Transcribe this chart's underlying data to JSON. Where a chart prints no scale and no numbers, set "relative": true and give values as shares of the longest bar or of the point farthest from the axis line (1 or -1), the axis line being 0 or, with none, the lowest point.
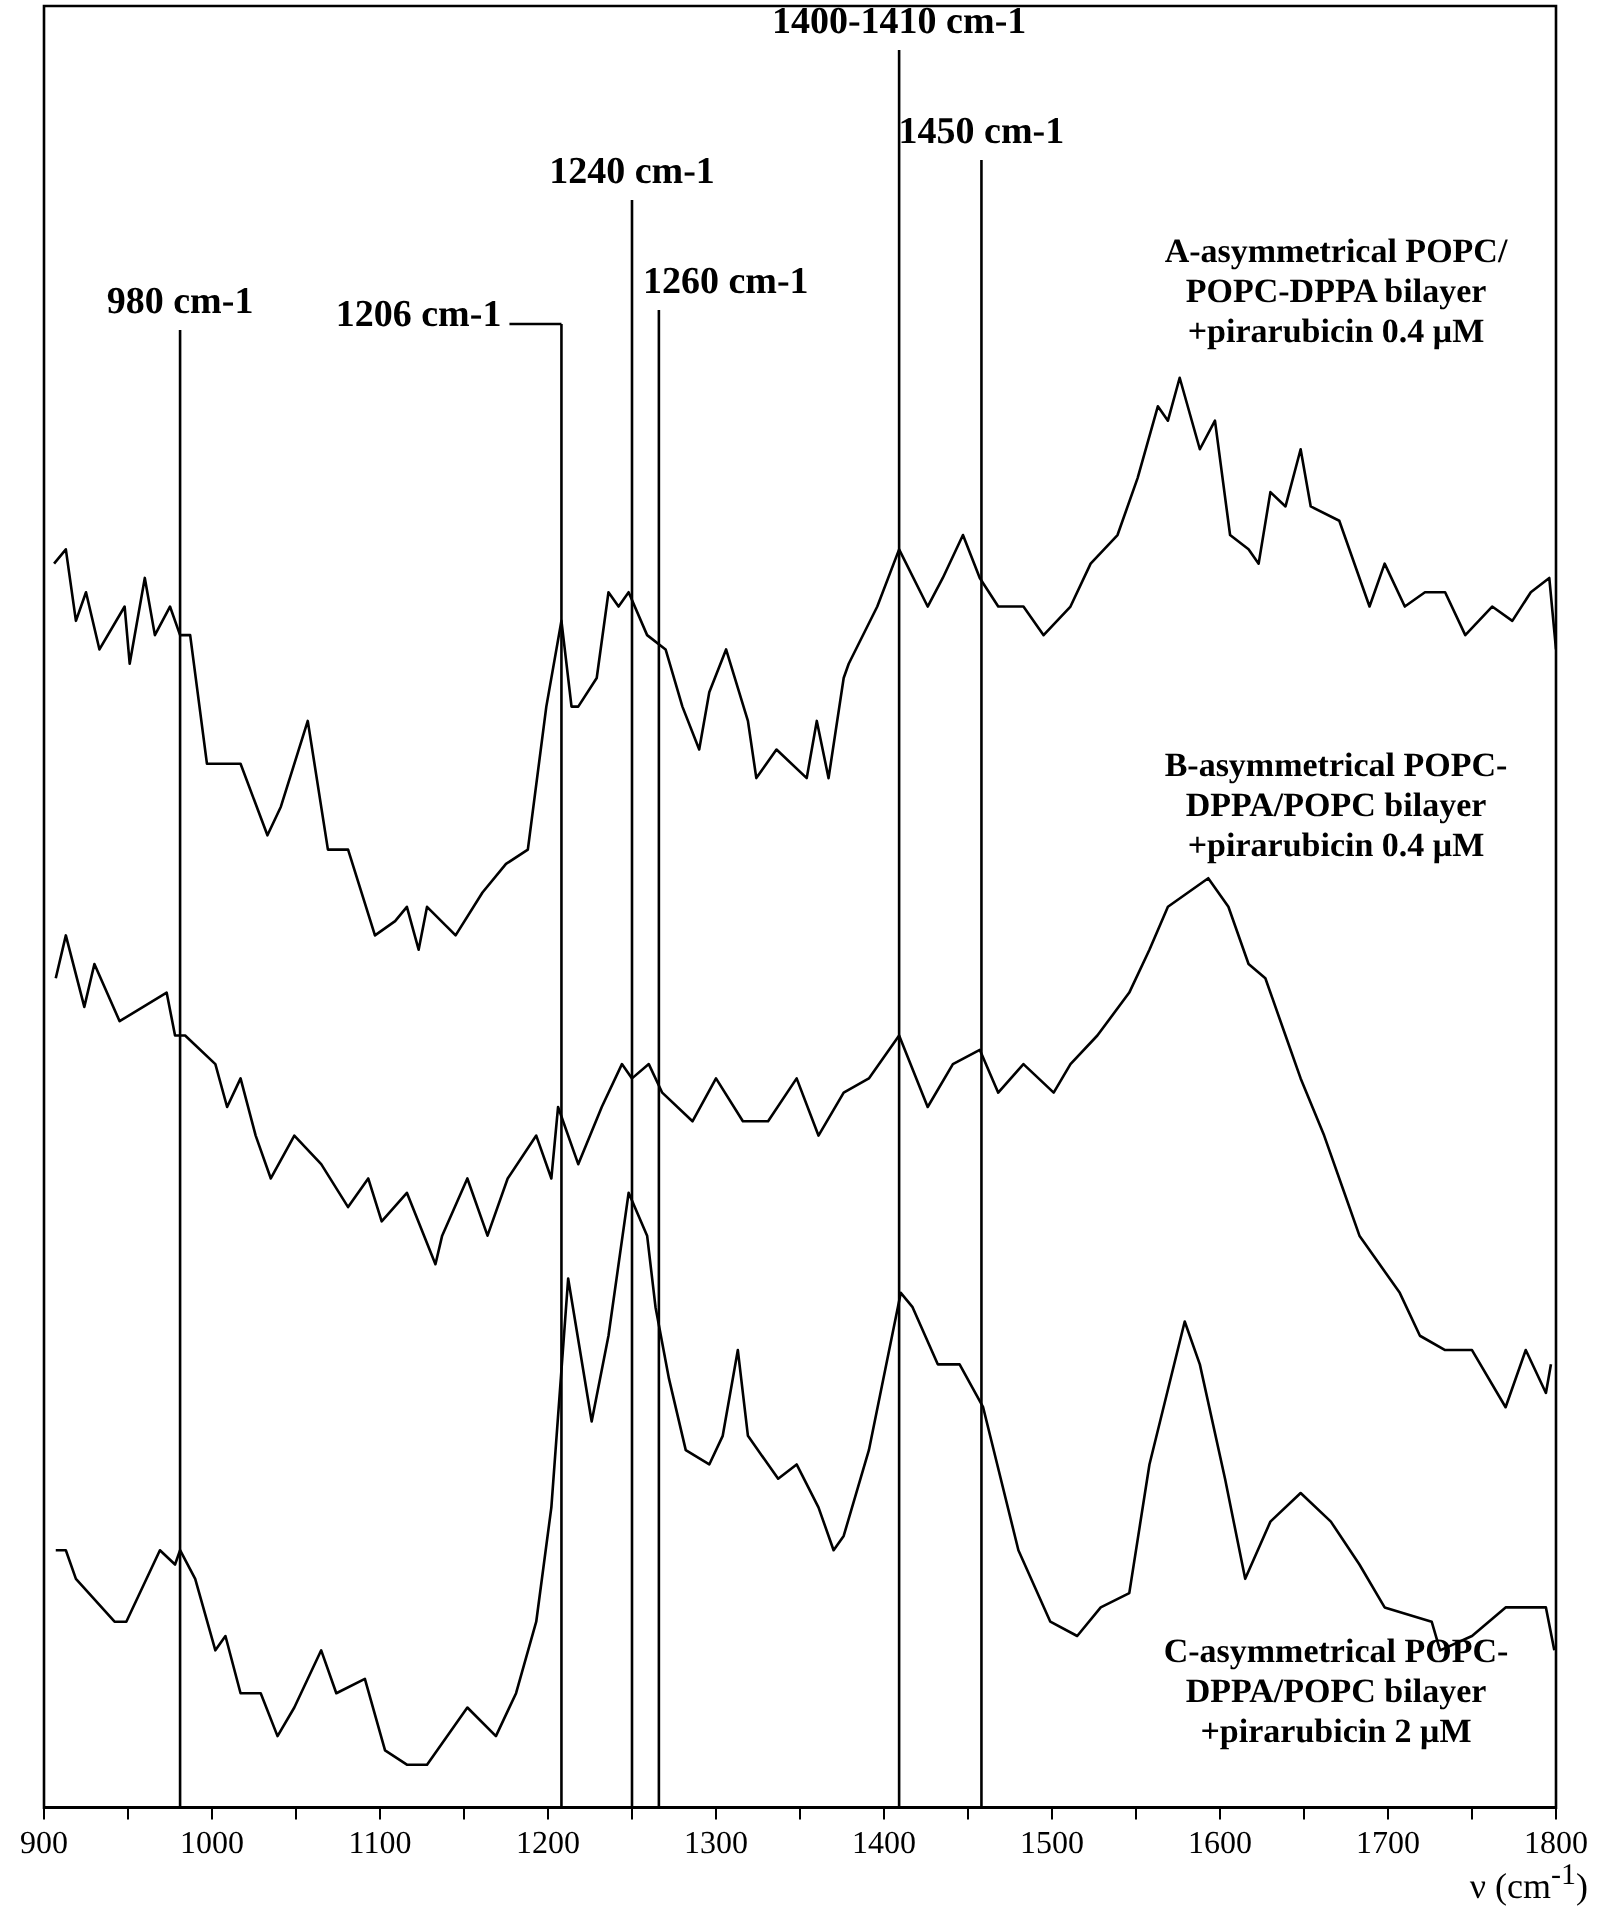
{
  "chart_data": {
    "type": "line",
    "relative": true,
    "xlabel": "ν (cm$^{-1}$)",
    "tick_labels": "x",
    "marker": "none",
    "line_style": "solid",
    "xlim": [
      900,
      1800
    ],
    "xticks": [
      900,
      {
        "value": 950,
        "label": null
      },
      1000,
      {
        "value": 1050,
        "label": null
      },
      1100,
      {
        "value": 1150,
        "label": null
      },
      1200,
      {
        "value": 1250,
        "label": null
      },
      1300,
      {
        "value": 1350,
        "label": null
      },
      1400,
      {
        "value": 1450,
        "label": null
      },
      1500,
      {
        "value": 1550,
        "label": null
      },
      1600,
      {
        "value": 1650,
        "label": null
      },
      1700,
      {
        "value": 1750,
        "label": null
      },
      1800
    ],
    "ref_lines": [
      {
        "axis": "x",
        "value": 981,
        "label": "980 cm-1",
        "color": "#000000"
      },
      {
        "axis": "x",
        "value": 1208,
        "label": "1206 cm-1",
        "color": "#000000"
      },
      {
        "axis": "x",
        "value": 1250,
        "label": "1240 cm-1",
        "color": "#000000"
      },
      {
        "axis": "x",
        "value": 1266,
        "label": "1260 cm-1",
        "color": "#000000"
      },
      {
        "axis": "x",
        "value": 1409,
        "label": "1400-1410 cm-1",
        "color": "#000000"
      },
      {
        "axis": "x",
        "value": 1458,
        "label": "1450 cm-1",
        "color": "#000000"
      }
    ],
    "series": [
      {
        "name": "A-asymmetrical POPC/ POPC-DPPA bilayer +pirarubicin 0.4 μM",
        "color": "#000000",
        "x": [
          906,
          913,
          919,
          925,
          933,
          948,
          951,
          960,
          966,
          975,
          981,
          987,
          997,
          1017,
          1033,
          1041,
          1057,
          1069,
          1081,
          1097,
          1109,
          1116,
          1123,
          1128,
          1145,
          1161,
          1175,
          1188,
          1199,
          1208,
          1214,
          1218,
          1229,
          1236,
          1242,
          1248,
          1259,
          1270,
          1280,
          1290,
          1296,
          1306,
          1319,
          1324,
          1336,
          1354,
          1360,
          1367,
          1376,
          1379,
          1396,
          1409,
          1426,
          1435,
          1447,
          1457,
          1468,
          1483,
          1495,
          1511,
          1523,
          1539,
          1551,
          1563,
          1569,
          1576,
          1588,
          1597,
          1606,
          1617,
          1623,
          1630,
          1639,
          1648,
          1654,
          1671,
          1689,
          1698,
          1710,
          1722,
          1734,
          1746,
          1762,
          1774,
          1785,
          1796,
          1800
        ],
        "values": [
          0.87,
          0.88,
          0.83,
          0.85,
          0.81,
          0.84,
          0.8,
          0.86,
          0.82,
          0.84,
          0.82,
          0.82,
          0.73,
          0.73,
          0.68,
          0.7,
          0.76,
          0.67,
          0.67,
          0.61,
          0.62,
          0.63,
          0.6,
          0.63,
          0.61,
          0.64,
          0.66,
          0.67,
          0.77,
          0.83,
          0.77,
          0.77,
          0.79,
          0.85,
          0.84,
          0.85,
          0.82,
          0.81,
          0.77,
          0.74,
          0.78,
          0.81,
          0.76,
          0.72,
          0.74,
          0.72,
          0.76,
          0.72,
          0.79,
          0.8,
          0.84,
          0.88,
          0.84,
          0.86,
          0.89,
          0.86,
          0.84,
          0.84,
          0.82,
          0.84,
          0.87,
          0.89,
          0.93,
          0.98,
          0.97,
          1.0,
          0.95,
          0.97,
          0.89,
          0.88,
          0.87,
          0.92,
          0.91,
          0.95,
          0.91,
          0.9,
          0.84,
          0.87,
          0.84,
          0.85,
          0.85,
          0.82,
          0.84,
          0.83,
          0.85,
          0.86,
          0.81
        ]
      },
      {
        "name": "B-asymmetrical POPC- DPPA/POPC bilayer +pirarubicin 0.4 μM",
        "color": "#000000",
        "x": [
          907,
          913,
          924,
          930,
          945,
          973,
          978,
          984,
          1002,
          1009,
          1017,
          1026,
          1035,
          1049,
          1065,
          1081,
          1093,
          1101,
          1116,
          1133,
          1137,
          1152,
          1164,
          1176,
          1193,
          1202,
          1206,
          1218,
          1232,
          1244,
          1250,
          1260,
          1268,
          1286,
          1300,
          1316,
          1331,
          1348,
          1361,
          1376,
          1391,
          1409,
          1426,
          1441,
          1457,
          1468,
          1483,
          1501,
          1511,
          1527,
          1546,
          1558,
          1569,
          1581,
          1593,
          1605,
          1617,
          1627,
          1639,
          1648,
          1662,
          1674,
          1683,
          1695,
          1707,
          1719,
          1734,
          1750,
          1770,
          1782,
          1794,
          1797
        ],
        "values": [
          0.58,
          0.61,
          0.56,
          0.59,
          0.55,
          0.57,
          0.54,
          0.54,
          0.52,
          0.49,
          0.51,
          0.47,
          0.44,
          0.47,
          0.45,
          0.42,
          0.44,
          0.41,
          0.43,
          0.38,
          0.4,
          0.44,
          0.4,
          0.44,
          0.47,
          0.44,
          0.49,
          0.45,
          0.49,
          0.52,
          0.51,
          0.52,
          0.5,
          0.48,
          0.51,
          0.48,
          0.48,
          0.51,
          0.47,
          0.5,
          0.51,
          0.54,
          0.49,
          0.52,
          0.53,
          0.5,
          0.52,
          0.5,
          0.52,
          0.54,
          0.57,
          0.6,
          0.63,
          0.64,
          0.65,
          0.63,
          0.59,
          0.58,
          0.54,
          0.51,
          0.47,
          0.43,
          0.4,
          0.38,
          0.36,
          0.33,
          0.32,
          0.32,
          0.28,
          0.32,
          0.29,
          0.31
        ]
      },
      {
        "name": "C-asymmetrical POPC- DPPA/POPC bilayer +pirarubicin 2 μM",
        "color": "#000000",
        "x": [
          907,
          913,
          919,
          942,
          949,
          969,
          978,
          981,
          990,
          1002,
          1008,
          1017,
          1029,
          1039,
          1049,
          1065,
          1074,
          1091,
          1103,
          1116,
          1128,
          1152,
          1169,
          1181,
          1193,
          1202,
          1212,
          1226,
          1236,
          1248,
          1259,
          1264,
          1272,
          1282,
          1296,
          1304,
          1313,
          1319,
          1337,
          1348,
          1361,
          1370,
          1376,
          1391,
          1410,
          1417,
          1432,
          1445,
          1459,
          1480,
          1499,
          1515,
          1529,
          1546,
          1558,
          1579,
          1588,
          1603,
          1615,
          1630,
          1648,
          1666,
          1683,
          1698,
          1726,
          1731,
          1750,
          1770,
          1785,
          1794,
          1799
        ],
        "values": [
          0.18,
          0.18,
          0.16,
          0.13,
          0.13,
          0.18,
          0.17,
          0.18,
          0.16,
          0.11,
          0.12,
          0.08,
          0.08,
          0.05,
          0.07,
          0.11,
          0.08,
          0.09,
          0.04,
          0.03,
          0.03,
          0.07,
          0.05,
          0.08,
          0.13,
          0.21,
          0.37,
          0.27,
          0.33,
          0.43,
          0.4,
          0.35,
          0.3,
          0.25,
          0.24,
          0.26,
          0.32,
          0.26,
          0.23,
          0.24,
          0.21,
          0.18,
          0.19,
          0.25,
          0.36,
          0.35,
          0.31,
          0.31,
          0.28,
          0.18,
          0.13,
          0.12,
          0.14,
          0.15,
          0.24,
          0.34,
          0.31,
          0.23,
          0.16,
          0.2,
          0.22,
          0.2,
          0.17,
          0.14,
          0.13,
          0.11,
          0.12,
          0.14,
          0.14,
          0.14,
          0.11
        ]
      }
    ]
  }
}
